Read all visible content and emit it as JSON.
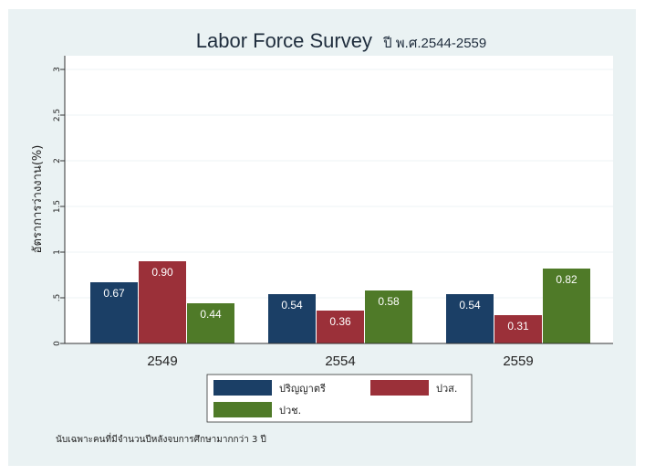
{
  "chart_data": {
    "type": "bar",
    "title": "Labor Force Survey",
    "subtitle": "ปี พ.ศ.2544-2559",
    "xlabel": "",
    "ylabel": "อัตราการว่างงาน(%)",
    "ylim": [
      0,
      3
    ],
    "yticks": [
      "0",
      ".5",
      "1",
      "1.5",
      "2",
      "2.5",
      "3"
    ],
    "categories": [
      "2549",
      "2554",
      "2559"
    ],
    "series": [
      {
        "name": "ปริญญาตรี",
        "values": [
          0.67,
          0.54,
          0.54
        ],
        "labels": [
          "0.67",
          "0.54",
          "0.54"
        ],
        "color": "#1b3f66"
      },
      {
        "name": "ปวส.",
        "values": [
          0.9,
          0.36,
          0.31
        ],
        "labels": [
          "0.90",
          "0.36",
          "0.31"
        ],
        "color": "#9b3039"
      },
      {
        "name": "ปวช.",
        "values": [
          0.44,
          0.58,
          0.82
        ],
        "labels": [
          "0.44",
          "0.58",
          "0.82"
        ],
        "color": "#4f7a28"
      }
    ],
    "grid": true,
    "legend": "bottom",
    "note": "นับเฉพาะคนที่มีจำนวนปีหลังจบการศึกษามากกว่า 3 ปี"
  }
}
